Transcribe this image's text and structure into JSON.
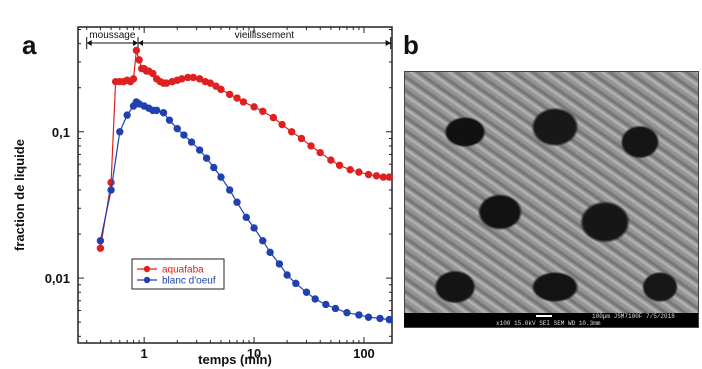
{
  "panel_a_label": "a",
  "panel_b_label": "b",
  "chart_data": {
    "type": "scatter",
    "xlabel": "temps (min)",
    "ylabel": "fraction de liquide",
    "xscale": "log",
    "yscale": "log",
    "xlim": [
      0.25,
      180
    ],
    "ylim": [
      0.0036,
      0.52
    ],
    "x_ticks": [
      {
        "value": 1,
        "label": "1"
      },
      {
        "value": 10,
        "label": "10"
      },
      {
        "value": 100,
        "label": "100"
      }
    ],
    "y_ticks": [
      {
        "value": 0.01,
        "label": "0,01"
      },
      {
        "value": 0.1,
        "label": "0,1"
      }
    ],
    "phases": [
      {
        "label": "moussage",
        "from": 0.3,
        "to": 0.88
      },
      {
        "label": "vieillissement",
        "from": 0.88,
        "to": 175
      }
    ],
    "legend_position": "bottom-left",
    "series": [
      {
        "name": "aquafaba",
        "color": "#e02020",
        "points": [
          [
            0.4,
            0.016
          ],
          [
            0.5,
            0.045
          ],
          [
            0.55,
            0.22
          ],
          [
            0.6,
            0.22
          ],
          [
            0.65,
            0.22
          ],
          [
            0.7,
            0.225
          ],
          [
            0.75,
            0.22
          ],
          [
            0.8,
            0.23
          ],
          [
            0.85,
            0.36
          ],
          [
            0.9,
            0.31
          ],
          [
            0.95,
            0.27
          ],
          [
            1.0,
            0.27
          ],
          [
            1.05,
            0.26
          ],
          [
            1.1,
            0.26
          ],
          [
            1.2,
            0.25
          ],
          [
            1.3,
            0.23
          ],
          [
            1.4,
            0.22
          ],
          [
            1.5,
            0.215
          ],
          [
            1.6,
            0.215
          ],
          [
            1.8,
            0.22
          ],
          [
            2.0,
            0.225
          ],
          [
            2.2,
            0.23
          ],
          [
            2.5,
            0.235
          ],
          [
            2.8,
            0.235
          ],
          [
            3.2,
            0.23
          ],
          [
            3.6,
            0.22
          ],
          [
            4.0,
            0.215
          ],
          [
            4.5,
            0.205
          ],
          [
            5.0,
            0.195
          ],
          [
            6.0,
            0.18
          ],
          [
            7.0,
            0.17
          ],
          [
            8.0,
            0.16
          ],
          [
            10.0,
            0.148
          ],
          [
            12.0,
            0.138
          ],
          [
            15.0,
            0.125
          ],
          [
            18.0,
            0.112
          ],
          [
            22.0,
            0.1
          ],
          [
            27.0,
            0.09
          ],
          [
            33.0,
            0.08
          ],
          [
            40.0,
            0.072
          ],
          [
            50.0,
            0.064
          ],
          [
            60.0,
            0.059
          ],
          [
            75.0,
            0.055
          ],
          [
            90.0,
            0.053
          ],
          [
            110.0,
            0.051
          ],
          [
            130.0,
            0.05
          ],
          [
            150.0,
            0.049
          ],
          [
            170.0,
            0.049
          ]
        ]
      },
      {
        "name": "blanc d'oeuf",
        "color": "#2040b0",
        "points": [
          [
            0.4,
            0.018
          ],
          [
            0.5,
            0.04
          ],
          [
            0.6,
            0.1
          ],
          [
            0.7,
            0.13
          ],
          [
            0.8,
            0.15
          ],
          [
            0.85,
            0.16
          ],
          [
            0.9,
            0.155
          ],
          [
            1.0,
            0.15
          ],
          [
            1.1,
            0.145
          ],
          [
            1.2,
            0.14
          ],
          [
            1.3,
            0.14
          ],
          [
            1.5,
            0.135
          ],
          [
            1.7,
            0.12
          ],
          [
            2.0,
            0.105
          ],
          [
            2.3,
            0.095
          ],
          [
            2.7,
            0.085
          ],
          [
            3.2,
            0.075
          ],
          [
            3.7,
            0.066
          ],
          [
            4.3,
            0.057
          ],
          [
            5.0,
            0.049
          ],
          [
            6.0,
            0.04
          ],
          [
            7.0,
            0.033
          ],
          [
            8.5,
            0.026
          ],
          [
            10.0,
            0.022
          ],
          [
            12.0,
            0.018
          ],
          [
            14.0,
            0.015
          ],
          [
            17.0,
            0.0125
          ],
          [
            20.0,
            0.0105
          ],
          [
            24.0,
            0.0092
          ],
          [
            30.0,
            0.008
          ],
          [
            36.0,
            0.0072
          ],
          [
            45.0,
            0.0066
          ],
          [
            55.0,
            0.0062
          ],
          [
            70.0,
            0.0058
          ],
          [
            90.0,
            0.0056
          ],
          [
            110.0,
            0.0054
          ],
          [
            140.0,
            0.0053
          ],
          [
            170.0,
            0.0052
          ]
        ]
      }
    ]
  },
  "sem_caption": {
    "line1": "100µm JSM7100F 7/5/2018",
    "line2": "x100    15.0kV SEI    SEM    WD 10.3mm"
  }
}
